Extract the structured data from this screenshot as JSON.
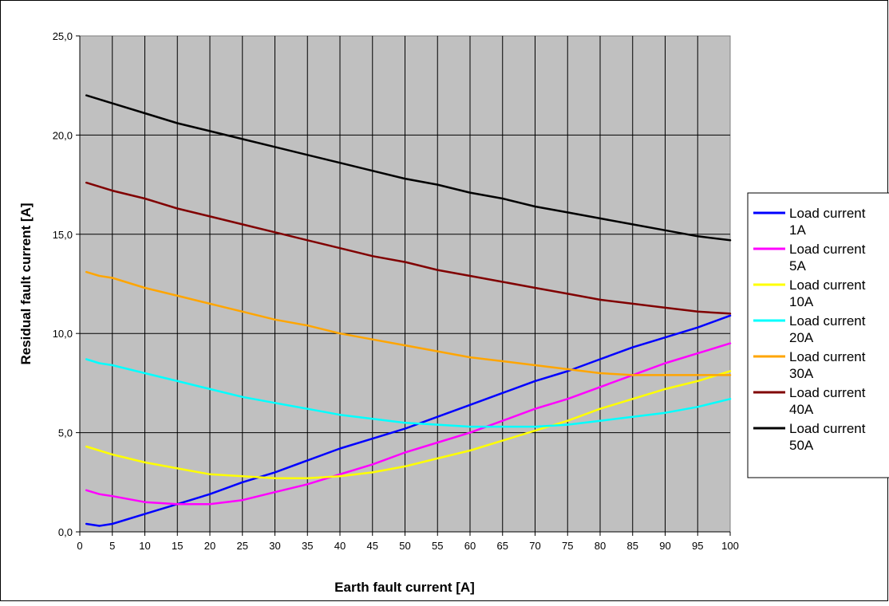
{
  "chart_data": {
    "type": "line",
    "title": "",
    "xlabel": "Earth fault current [A]",
    "ylabel": "Residual fault current [A]",
    "xlim": [
      0,
      100
    ],
    "ylim": [
      0,
      25
    ],
    "x_ticks": [
      "0",
      "5",
      "10",
      "15",
      "20",
      "25",
      "30",
      "35",
      "40",
      "45",
      "50",
      "55",
      "60",
      "65",
      "70",
      "75",
      "80",
      "85",
      "90",
      "95",
      "100"
    ],
    "y_ticks": [
      {
        "value": 0,
        "label": "0,0"
      },
      {
        "value": 5,
        "label": "5,0"
      },
      {
        "value": 10,
        "label": "10,0"
      },
      {
        "value": 15,
        "label": "15,0"
      },
      {
        "value": 20,
        "label": "20,0"
      },
      {
        "value": 25,
        "label": "25,0"
      }
    ],
    "grid": true,
    "plot_background": "#c0c0c0",
    "legend_position": "right",
    "x": [
      1,
      3,
      5,
      10,
      15,
      20,
      25,
      30,
      35,
      40,
      45,
      50,
      55,
      60,
      65,
      70,
      75,
      80,
      85,
      90,
      95,
      100
    ],
    "series": [
      {
        "name": "Load current 1A",
        "color": "#0000ff",
        "values": [
          0.4,
          0.3,
          0.4,
          0.9,
          1.4,
          1.9,
          2.5,
          3.0,
          3.6,
          4.2,
          4.7,
          5.2,
          5.8,
          6.4,
          7.0,
          7.6,
          8.1,
          8.7,
          9.3,
          9.8,
          10.3,
          10.9
        ]
      },
      {
        "name": "Load current 5A",
        "color": "#ff00ff",
        "values": [
          2.1,
          1.9,
          1.8,
          1.5,
          1.4,
          1.4,
          1.6,
          2.0,
          2.4,
          2.9,
          3.4,
          4.0,
          4.5,
          5.0,
          5.6,
          6.2,
          6.7,
          7.3,
          7.9,
          8.5,
          9.0,
          9.5
        ]
      },
      {
        "name": "Load current 10A",
        "color": "#ffff00",
        "values": [
          4.3,
          4.1,
          3.9,
          3.5,
          3.2,
          2.9,
          2.8,
          2.7,
          2.7,
          2.8,
          3.0,
          3.3,
          3.7,
          4.1,
          4.6,
          5.1,
          5.6,
          6.2,
          6.7,
          7.2,
          7.6,
          8.1
        ]
      },
      {
        "name": "Load current 20A",
        "color": "#00ffff",
        "values": [
          8.7,
          8.5,
          8.4,
          8.0,
          7.6,
          7.2,
          6.8,
          6.5,
          6.2,
          5.9,
          5.7,
          5.5,
          5.4,
          5.3,
          5.3,
          5.3,
          5.4,
          5.6,
          5.8,
          6.0,
          6.3,
          6.7
        ]
      },
      {
        "name": "Load current 30A",
        "color": "#ffa500",
        "values": [
          13.1,
          12.9,
          12.8,
          12.3,
          11.9,
          11.5,
          11.1,
          10.7,
          10.4,
          10.0,
          9.7,
          9.4,
          9.1,
          8.8,
          8.6,
          8.4,
          8.2,
          8.0,
          7.9,
          7.9,
          7.9,
          7.9
        ]
      },
      {
        "name": "Load current 40A",
        "color": "#800000",
        "values": [
          17.6,
          17.4,
          17.2,
          16.8,
          16.3,
          15.9,
          15.5,
          15.1,
          14.7,
          14.3,
          13.9,
          13.6,
          13.2,
          12.9,
          12.6,
          12.3,
          12.0,
          11.7,
          11.5,
          11.3,
          11.1,
          11.0
        ]
      },
      {
        "name": "Load current 50A",
        "color": "#000000",
        "values": [
          22.0,
          21.8,
          21.6,
          21.1,
          20.6,
          20.2,
          19.8,
          19.4,
          19.0,
          18.6,
          18.2,
          17.8,
          17.5,
          17.1,
          16.8,
          16.4,
          16.1,
          15.8,
          15.5,
          15.2,
          14.9,
          14.7
        ]
      }
    ]
  }
}
